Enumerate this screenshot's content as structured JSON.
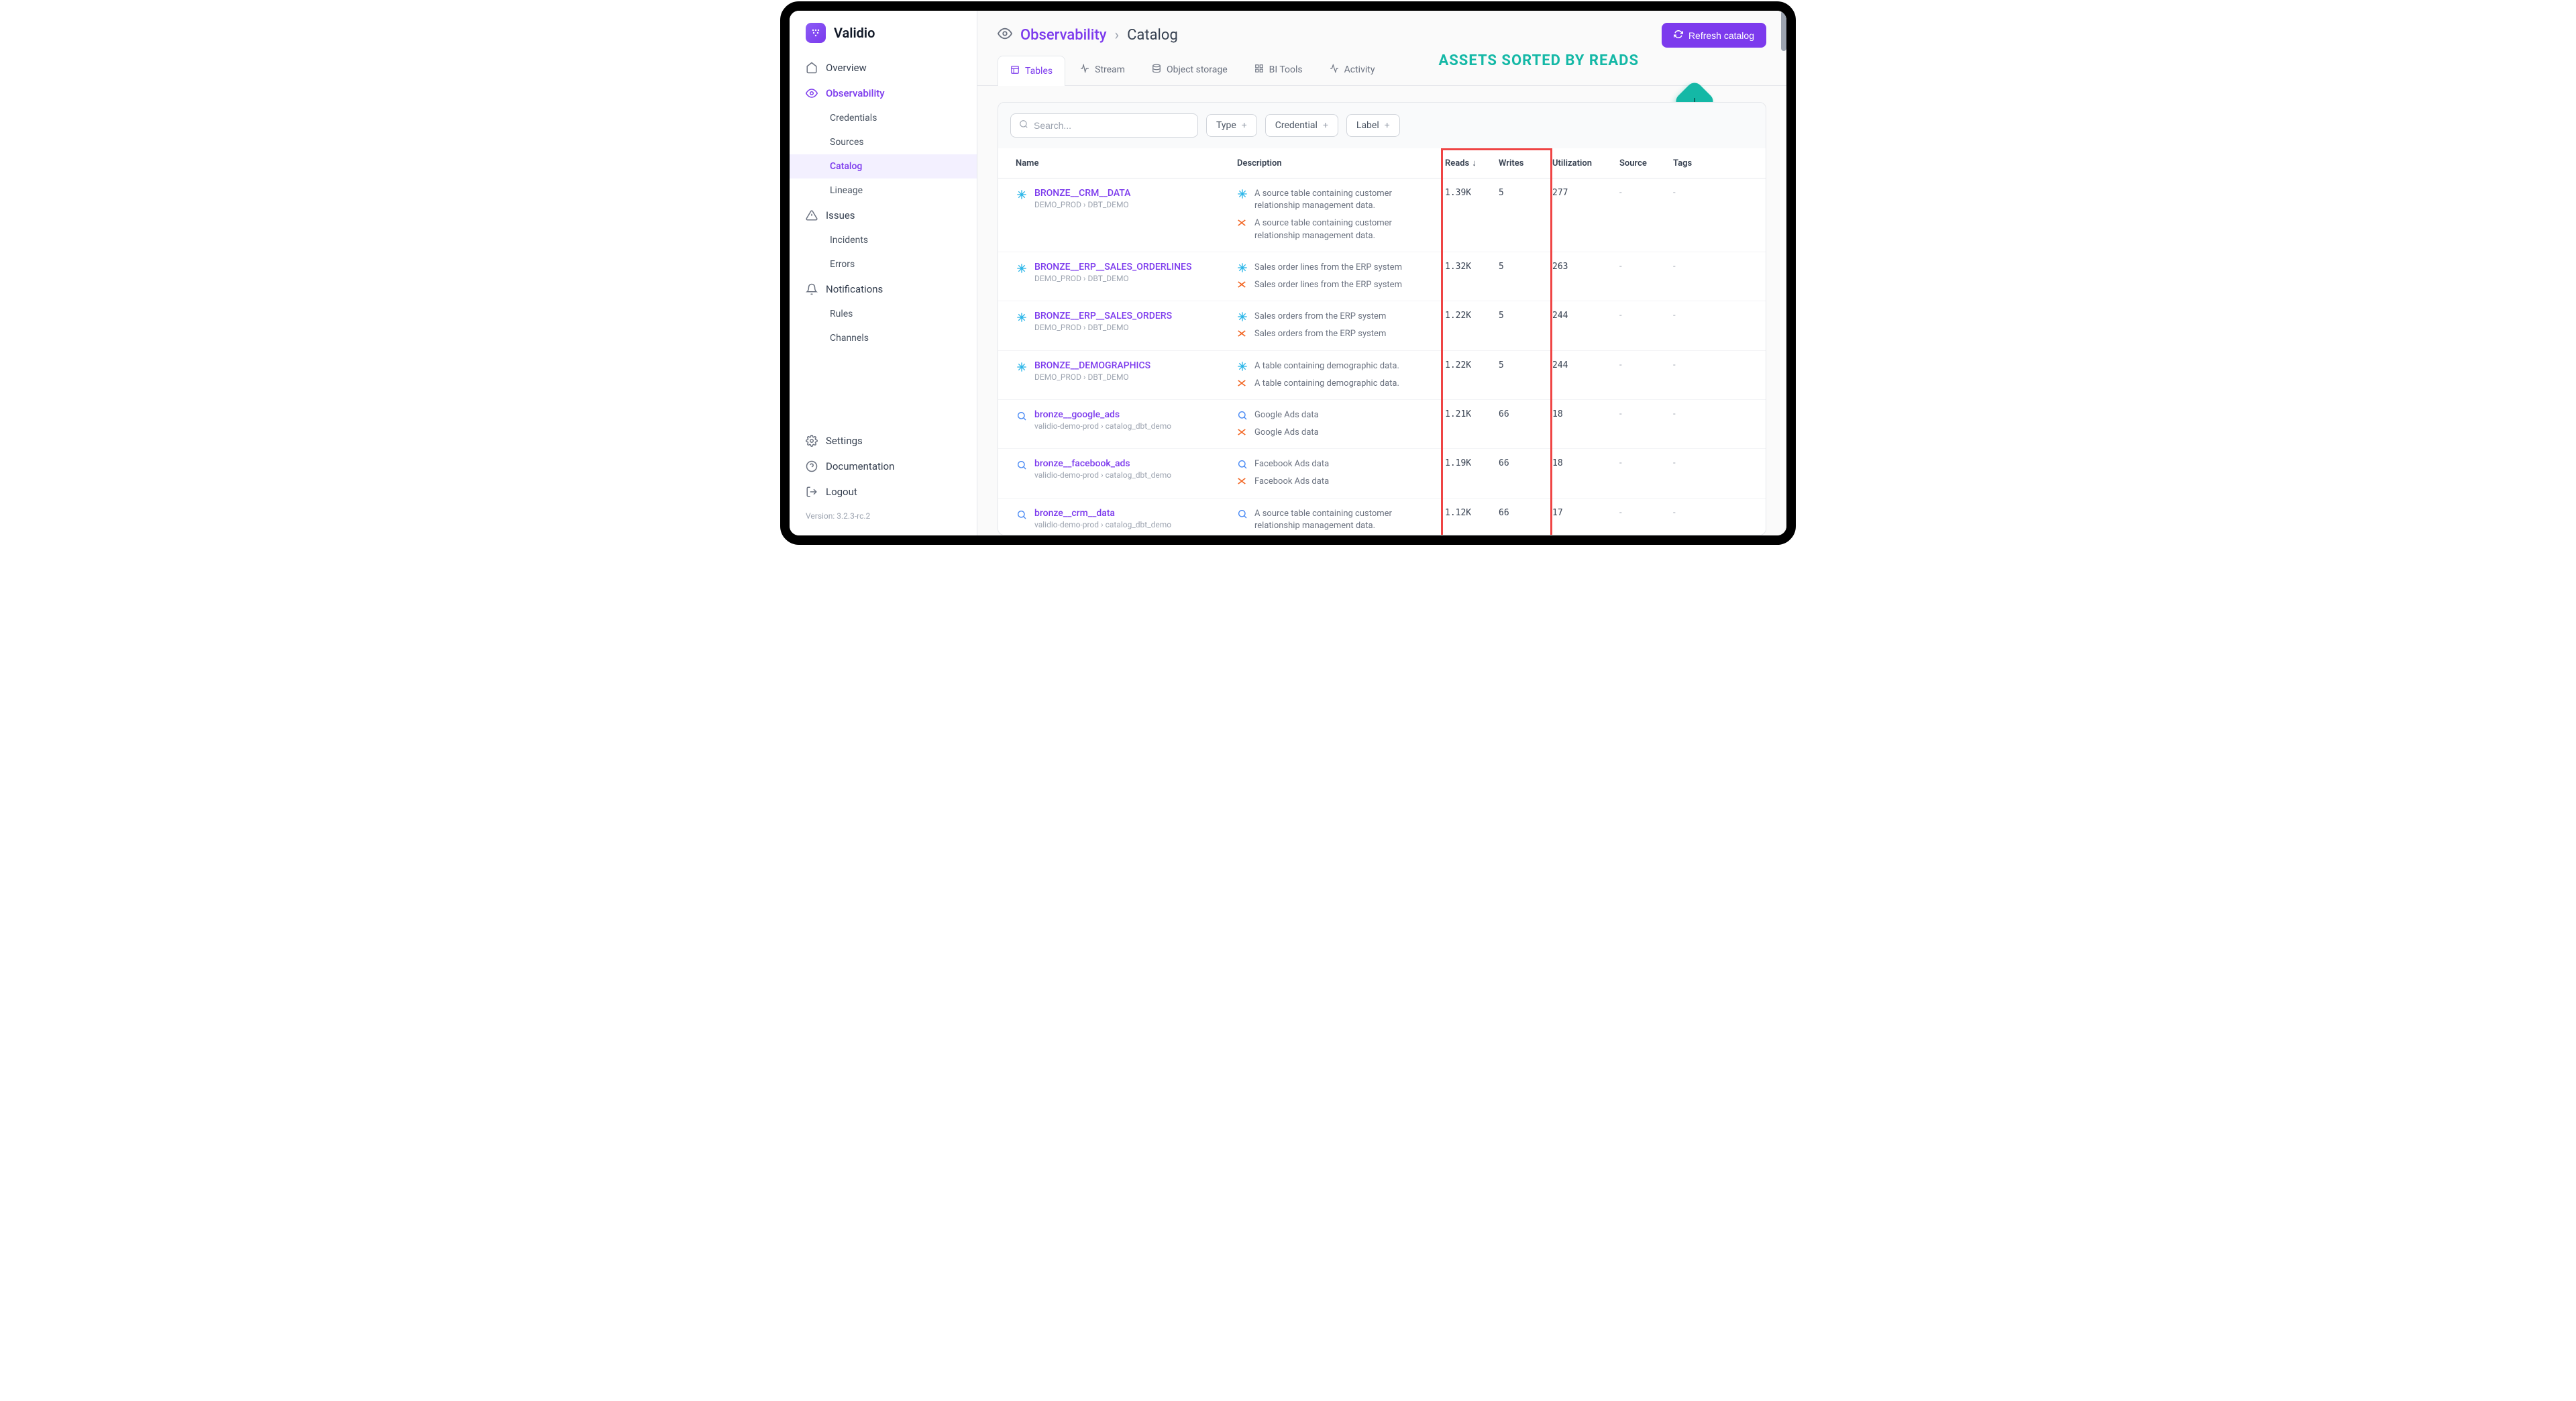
{
  "brand": {
    "name": "Validio",
    "badge": "V"
  },
  "sidebar": {
    "items": [
      {
        "label": "Overview",
        "icon": "home"
      },
      {
        "label": "Observability",
        "icon": "eye",
        "active": true
      },
      {
        "label": "Credentials",
        "sub": true
      },
      {
        "label": "Sources",
        "sub": true
      },
      {
        "label": "Catalog",
        "sub": true,
        "active": true
      },
      {
        "label": "Lineage",
        "sub": true
      },
      {
        "label": "Issues",
        "icon": "warning"
      },
      {
        "label": "Incidents",
        "sub": true
      },
      {
        "label": "Errors",
        "sub": true
      },
      {
        "label": "Notifications",
        "icon": "bell"
      },
      {
        "label": "Rules",
        "sub": true
      },
      {
        "label": "Channels",
        "sub": true
      }
    ],
    "footer": [
      {
        "label": "Settings",
        "icon": "gear"
      },
      {
        "label": "Documentation",
        "icon": "help"
      },
      {
        "label": "Logout",
        "icon": "logout"
      }
    ],
    "version": "Version: 3.2.3-rc.2"
  },
  "breadcrumb": {
    "link": "Observability",
    "current": "Catalog"
  },
  "refresh_label": "Refresh catalog",
  "annotation": "ASSETS SORTED BY READS",
  "tabs": [
    {
      "label": "Tables",
      "icon": "table",
      "active": true
    },
    {
      "label": "Stream",
      "icon": "stream"
    },
    {
      "label": "Object storage",
      "icon": "storage"
    },
    {
      "label": "BI Tools",
      "icon": "bi"
    },
    {
      "label": "Activity",
      "icon": "activity"
    }
  ],
  "filters": {
    "search_placeholder": "Search...",
    "type": "Type",
    "credential": "Credential",
    "label": "Label"
  },
  "columns": {
    "name": "Name",
    "description": "Description",
    "reads": "Reads",
    "writes": "Writes",
    "utilization": "Utilization",
    "source": "Source",
    "tags": "Tags"
  },
  "rows": [
    {
      "icon": "snowflake",
      "name": "BRONZE__CRM__DATA",
      "path": "DEMO_PROD › DBT_DEMO",
      "desc": [
        {
          "icon": "snowflake",
          "text": "A source table containing customer relationship management data."
        },
        {
          "icon": "xred",
          "text": "A source table containing customer relationship management data."
        }
      ],
      "reads": "1.39K",
      "writes": "5",
      "utilization": "277",
      "source": "-",
      "tags": "-"
    },
    {
      "icon": "snowflake",
      "name": "BRONZE__ERP__SALES_ORDERLINES",
      "path": "DEMO_PROD › DBT_DEMO",
      "desc": [
        {
          "icon": "snowflake",
          "text": "Sales order lines from the ERP system"
        },
        {
          "icon": "xred",
          "text": "Sales order lines from the ERP system"
        }
      ],
      "reads": "1.32K",
      "writes": "5",
      "utilization": "263",
      "source": "-",
      "tags": "-"
    },
    {
      "icon": "snowflake",
      "name": "BRONZE__ERP__SALES_ORDERS",
      "path": "DEMO_PROD › DBT_DEMO",
      "desc": [
        {
          "icon": "snowflake",
          "text": "Sales orders from the ERP system"
        },
        {
          "icon": "xred",
          "text": "Sales orders from the ERP system"
        }
      ],
      "reads": "1.22K",
      "writes": "5",
      "utilization": "244",
      "source": "-",
      "tags": "-"
    },
    {
      "icon": "snowflake",
      "name": "BRONZE__DEMOGRAPHICS",
      "path": "DEMO_PROD › DBT_DEMO",
      "desc": [
        {
          "icon": "snowflake",
          "text": "A table containing demographic data."
        },
        {
          "icon": "xred",
          "text": "A table containing demographic data."
        }
      ],
      "reads": "1.22K",
      "writes": "5",
      "utilization": "244",
      "source": "-",
      "tags": "-"
    },
    {
      "icon": "bigquery",
      "name": "bronze__google_ads",
      "path": "validio-demo-prod › catalog_dbt_demo",
      "desc": [
        {
          "icon": "bigquery",
          "text": "Google Ads data"
        },
        {
          "icon": "xred",
          "text": "Google Ads data"
        }
      ],
      "reads": "1.21K",
      "writes": "66",
      "utilization": "18",
      "source": "-",
      "tags": "-"
    },
    {
      "icon": "bigquery",
      "name": "bronze__facebook_ads",
      "path": "validio-demo-prod › catalog_dbt_demo",
      "desc": [
        {
          "icon": "bigquery",
          "text": "Facebook Ads data"
        },
        {
          "icon": "xred",
          "text": "Facebook Ads data"
        }
      ],
      "reads": "1.19K",
      "writes": "66",
      "utilization": "18",
      "source": "-",
      "tags": "-"
    },
    {
      "icon": "bigquery",
      "name": "bronze__crm__data",
      "path": "validio-demo-prod › catalog_dbt_demo",
      "desc": [
        {
          "icon": "bigquery",
          "text": "A source table containing customer relationship management data."
        },
        {
          "icon": "xred",
          "text": "A source table containing customer relationship management data."
        }
      ],
      "reads": "1.12K",
      "writes": "66",
      "utilization": "17",
      "source": "-",
      "tags": "-"
    }
  ],
  "colors": {
    "accent": "#7c3aed",
    "annotation": "#14b8a6",
    "highlight_border": "#ef4444",
    "snowflake": "#29b5e8",
    "xred": "#f26522"
  }
}
